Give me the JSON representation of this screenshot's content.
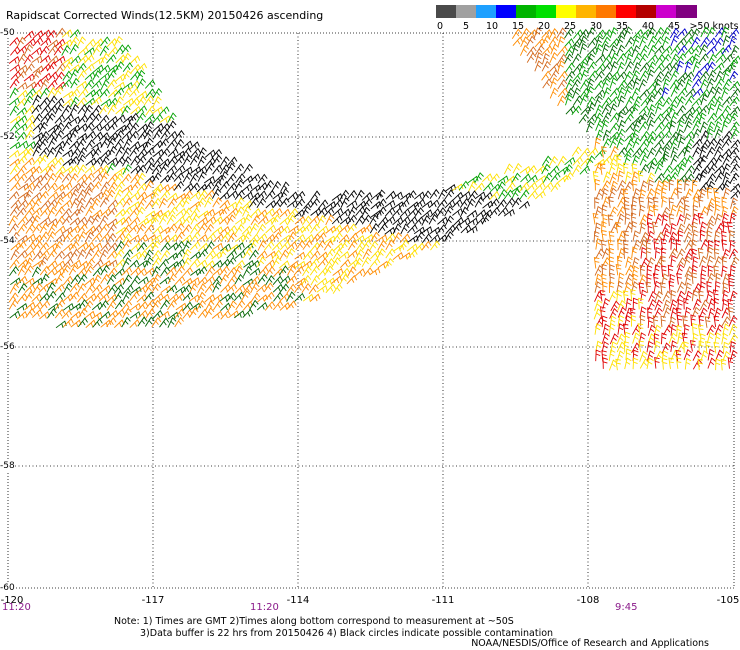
{
  "title": "Rapidscat Corrected Winds(12.5KM) 20150426 ascending",
  "colorbar": {
    "labels": [
      "0",
      "5",
      "10",
      "15",
      "20",
      "25",
      "30",
      "35",
      "40",
      "45",
      ">50 knots"
    ],
    "colors": [
      "#4a4a4a",
      "#a0a0a0",
      "#1ea0ff",
      "#0000ff",
      "#00b400",
      "#00e000",
      "#ffff00",
      "#ffb400",
      "#ff7800",
      "#ff0000",
      "#b40000",
      "#cc00cc",
      "#800080"
    ]
  },
  "axes": {
    "lon_labels": [
      "-120",
      "-117",
      "-114",
      "-111",
      "-108",
      "-105"
    ],
    "lat_labels": [
      "-50",
      "-52",
      "-54",
      "-56",
      "-58",
      "-60"
    ],
    "time_labels": [
      "11:20",
      "11:20",
      "9:45"
    ]
  },
  "notes": {
    "line1": "Note: 1) Times are GMT 2)Times along bottom correspond to measurement at ~50S",
    "line2": "3)Data buffer is 22 hrs from 20150426 4) Black circles indicate possible contamination"
  },
  "credit": "NOAA/NESDIS/Office of Research and Applications",
  "legend_colors": {
    "black": "#000000",
    "green": "#00a000",
    "dark_green": "#006400",
    "yellow": "#ffe000",
    "orange": "#ff8c00",
    "dark_orange": "#d2691e",
    "red": "#e00000",
    "blue": "#0000cc"
  }
}
